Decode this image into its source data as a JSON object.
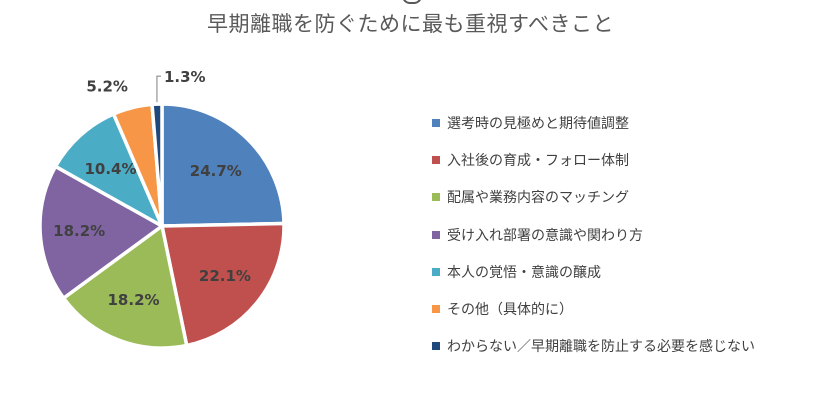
{
  "chart_data": {
    "type": "pie",
    "title": "早期離職を防ぐために最も重視すべきこと",
    "categories": [
      "選考時の見極めと期待値調整",
      "入社後の育成・フォロー体制",
      "配属や業務内容のマッチング",
      "受け入れ部署の意識や関わり方",
      "本人の覚悟・意識の醸成",
      "その他（具体的に）",
      "わからない／早期離職を防止する必要を感じない"
    ],
    "values": [
      24.7,
      22.1,
      18.2,
      18.2,
      10.4,
      5.2,
      1.3
    ],
    "value_labels": [
      "24.7%",
      "22.1%",
      "18.2%",
      "18.2%",
      "10.4%",
      "5.2%",
      "1.3%"
    ],
    "colors": [
      "#4F81BD",
      "#C0504D",
      "#9BBB59",
      "#8064A2",
      "#4BACC6",
      "#F79646",
      "#1F497D"
    ],
    "legend_position": "right"
  }
}
